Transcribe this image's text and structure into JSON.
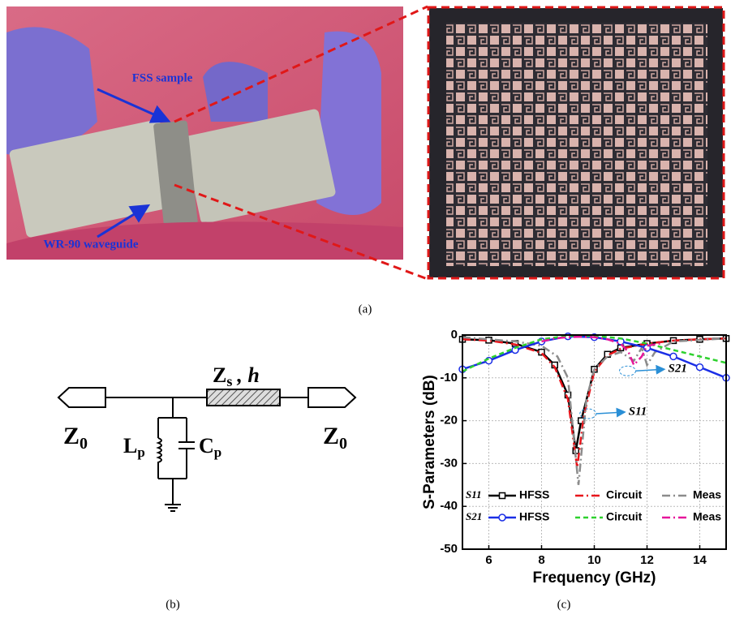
{
  "panel_a": {
    "labels": [
      "FSS sample",
      "WR-90 waveguide"
    ],
    "caption": "(a)"
  },
  "panel_b": {
    "port_left": {
      "symbol": "Z",
      "subscript": "0"
    },
    "port_right": {
      "symbol": "Z",
      "subscript": "0"
    },
    "line": {
      "symbol": "Z",
      "subscript": "s",
      "rest": ", h"
    },
    "inductor": {
      "symbol": "L",
      "subscript": "p"
    },
    "capacitor": {
      "symbol": "C",
      "subscript": "p"
    },
    "caption": "(b)"
  },
  "chart_data": {
    "type": "line",
    "xlabel": "Frequency (GHz)",
    "ylabel": "S-Parameters (dB)",
    "caption": "(c)",
    "xlim": [
      5,
      15
    ],
    "xticks": [
      6,
      8,
      10,
      12,
      14
    ],
    "ylim": [
      -50,
      0
    ],
    "yticks": [
      0,
      -10,
      -20,
      -30,
      -40,
      -50
    ],
    "grid": true,
    "legend_groups": [
      "S11",
      "S21"
    ],
    "annotations": [
      {
        "text": "S11",
        "x": 11.3,
        "y": -18
      },
      {
        "text": "S21",
        "x": 12.8,
        "y": -8
      }
    ],
    "series": [
      {
        "name": "HFSS",
        "group": 0,
        "color": "#000000",
        "linestyle": "solid",
        "marker": "square",
        "x": [
          5,
          6,
          7,
          8,
          8.5,
          9,
          9.3,
          9.5,
          10,
          10.5,
          11,
          12,
          13,
          14,
          15
        ],
        "values": [
          -1,
          -1.2,
          -2,
          -4,
          -7,
          -14,
          -27,
          -20,
          -8,
          -4.5,
          -3,
          -2,
          -1.3,
          -1,
          -0.8
        ]
      },
      {
        "name": "Circuit",
        "group": 0,
        "color": "#e8141b",
        "linestyle": "dashdot",
        "marker": null,
        "x": [
          5,
          6,
          7,
          8,
          8.5,
          9,
          9.35,
          9.6,
          10,
          10.5,
          11,
          12,
          13,
          14,
          15
        ],
        "values": [
          -1,
          -1.3,
          -2.2,
          -4.2,
          -7.5,
          -15,
          -31,
          -19,
          -8.5,
          -4.8,
          -3.2,
          -2,
          -1.3,
          -1,
          -0.8
        ]
      },
      {
        "name": "Meas",
        "group": 0,
        "color": "#8c8c8c",
        "linestyle": "dashdot",
        "marker": null,
        "x": [
          5,
          7,
          8,
          8.6,
          9,
          9.4,
          9.7,
          10,
          10.5,
          11,
          11.5,
          11.8,
          12,
          12.3,
          13,
          15
        ],
        "values": [
          -0.5,
          -1.5,
          -2.5,
          -5,
          -10,
          -35,
          -15,
          -8,
          -5,
          -4,
          -6,
          -3,
          -7,
          -4,
          -1.5,
          -0.8
        ]
      },
      {
        "name": "HFSS",
        "group": 1,
        "color": "#1a2ee6",
        "linestyle": "solid",
        "marker": "circle",
        "x": [
          5,
          6,
          7,
          8,
          9,
          10,
          11,
          12,
          13,
          14,
          15
        ],
        "values": [
          -8,
          -6,
          -3.5,
          -1.5,
          -0.3,
          -0.5,
          -1.5,
          -3,
          -5,
          -7.5,
          -10
        ]
      },
      {
        "name": "Circuit",
        "group": 1,
        "color": "#2ed12e",
        "linestyle": "dashed",
        "marker": null,
        "x": [
          5,
          6,
          7,
          8,
          9,
          10,
          11,
          12,
          13,
          14,
          15
        ],
        "values": [
          -8.5,
          -5.5,
          -3,
          -1,
          -0.2,
          -0.2,
          -0.8,
          -2,
          -3.5,
          -5,
          -6.5
        ]
      },
      {
        "name": "Meas",
        "group": 1,
        "color": "#e6169a",
        "linestyle": "dashdot",
        "marker": null,
        "x": [
          8,
          8.5,
          9,
          9.5,
          10,
          10.5,
          11,
          11.3,
          11.5,
          11.8,
          12,
          12.5
        ],
        "values": [
          -1.5,
          -0.8,
          -0.5,
          -0.4,
          -0.5,
          -1,
          -2,
          -4,
          -7,
          -5,
          -2.5,
          -2
        ]
      }
    ]
  }
}
